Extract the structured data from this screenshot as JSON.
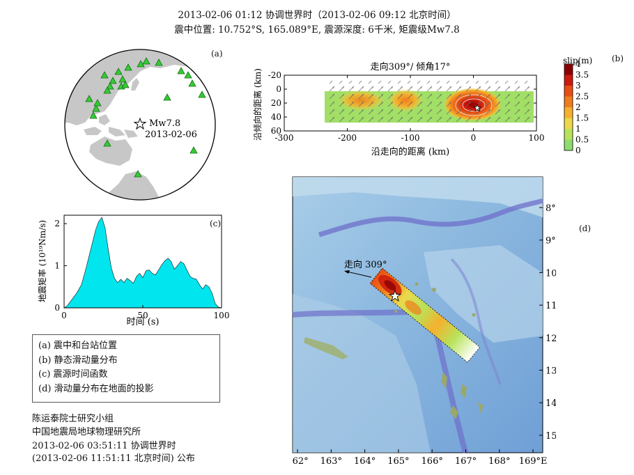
{
  "header": {
    "line1": "2013-02-06 01:12 协调世界时（2013-02-06 09:12 北京时间）",
    "line2": "震中位置: 10.752°S, 165.089°E, 震源深度: 6千米, 矩震级Mw7.8"
  },
  "panel_a": {
    "label": "(a)",
    "event_mag": "Mw7.8",
    "event_date": "2013-02-06",
    "colors": {
      "land": "#c7c7c7",
      "ocean": "#ffffff",
      "station": "#33cc33",
      "station_edge": "#1a6e1a"
    }
  },
  "panel_b": {
    "label": "(b)",
    "title": "走向309°/ 倾角17°",
    "ylabel": "沿倾向的距离 (km)",
    "xlabel": "沿走向的距离 (km)",
    "colorbar_title": "slip(m)",
    "colorbar_labels": [
      "4",
      "3.5",
      "3",
      "2.5",
      "2",
      "1.5",
      "1",
      "0.5",
      "0"
    ],
    "colorbar_colors": [
      "#8b0000",
      "#cc1a0d",
      "#e84e12",
      "#f07d1c",
      "#f5b12d",
      "#ecd84a",
      "#b8e25a",
      "#8fdc6f",
      "#ffffff"
    ]
  },
  "panel_c": {
    "label": "(c)",
    "ylabel": "地震矩率 (10¹⁹Nm/s)",
    "xlabel": "时间 (s)",
    "fill_color": "#00e5ee"
  },
  "panel_d": {
    "label": "(d)",
    "strike_label": "走向 309°",
    "lat_labels": [
      "8°S",
      "9°",
      "10°",
      "11°",
      "12°",
      "13°",
      "14°",
      "15°"
    ],
    "lon_labels": [
      "162°",
      "163°",
      "164°",
      "165°",
      "166°",
      "167°",
      "168°",
      "169°E"
    ]
  },
  "legend": {
    "items": [
      "(a) 震中和台站位置",
      "(b) 静态滑动量分布",
      "(c) 震源时间函数",
      "(d) 滑动量分布在地面的投影"
    ]
  },
  "credits": {
    "line1": "陈运泰院士研究小组",
    "line2": "中国地震局地球物理研究所",
    "line3": "2013-02-06 03:51:11 协调世界时",
    "line4": "(2013-02-06 11:51:11 北京时间) 公布"
  },
  "chart_data": [
    {
      "type": "area",
      "title": "",
      "xlabel": "时间 (s)",
      "ylabel": "地震矩率 (10¹⁹Nm/s)",
      "xlim": [
        0,
        100
      ],
      "ylim": [
        0,
        2.2
      ],
      "xticks": [
        0,
        50,
        100
      ],
      "yticks": [
        0,
        1,
        2
      ],
      "x": [
        0,
        2,
        5,
        8,
        11,
        14,
        17,
        20,
        22,
        24,
        26,
        28,
        30,
        32,
        34,
        36,
        38,
        40,
        42,
        44,
        46,
        48,
        50,
        52,
        54,
        56,
        58,
        60,
        62,
        64,
        66,
        68,
        70,
        72,
        74,
        76,
        78,
        80,
        82,
        84,
        86,
        88,
        90,
        92,
        94,
        96,
        98,
        100
      ],
      "y": [
        0,
        0.05,
        0.2,
        0.35,
        0.55,
        0.95,
        1.4,
        1.85,
        2.05,
        2.15,
        1.9,
        1.4,
        0.95,
        0.7,
        0.6,
        0.68,
        0.6,
        0.7,
        0.65,
        0.58,
        0.75,
        0.82,
        0.72,
        0.88,
        0.9,
        0.82,
        0.78,
        0.9,
        1.02,
        1.12,
        1.18,
        1.1,
        0.92,
        1.0,
        1.1,
        1.05,
        0.9,
        0.75,
        0.7,
        0.68,
        0.55,
        0.45,
        0.55,
        0.5,
        0.35,
        0.1,
        0.02,
        0
      ]
    },
    {
      "type": "heatmap",
      "title": "走向309°/ 倾角17°",
      "xlabel": "沿走向的距离 (km)",
      "ylabel": "沿倾向的距离 (km)",
      "xlim": [
        -300,
        100
      ],
      "ylim": [
        -20,
        60
      ],
      "xticks": [
        -300,
        -200,
        -100,
        0,
        100
      ],
      "yticks": [
        -20,
        0,
        20,
        40,
        60
      ],
      "colorbar_label": "slip(m)",
      "colorbar_range": [
        0,
        4
      ],
      "fault_extent": {
        "x": [
          -240,
          90
        ],
        "y": [
          0,
          45
        ]
      },
      "hypocenter": [
        0,
        22
      ],
      "slip_patches": [
        {
          "x": -185,
          "y": 15,
          "slip": 2.0
        },
        {
          "x": -120,
          "y": 15,
          "slip": 2.3
        },
        {
          "x": -5,
          "y": 20,
          "slip": 4.0
        }
      ]
    }
  ]
}
